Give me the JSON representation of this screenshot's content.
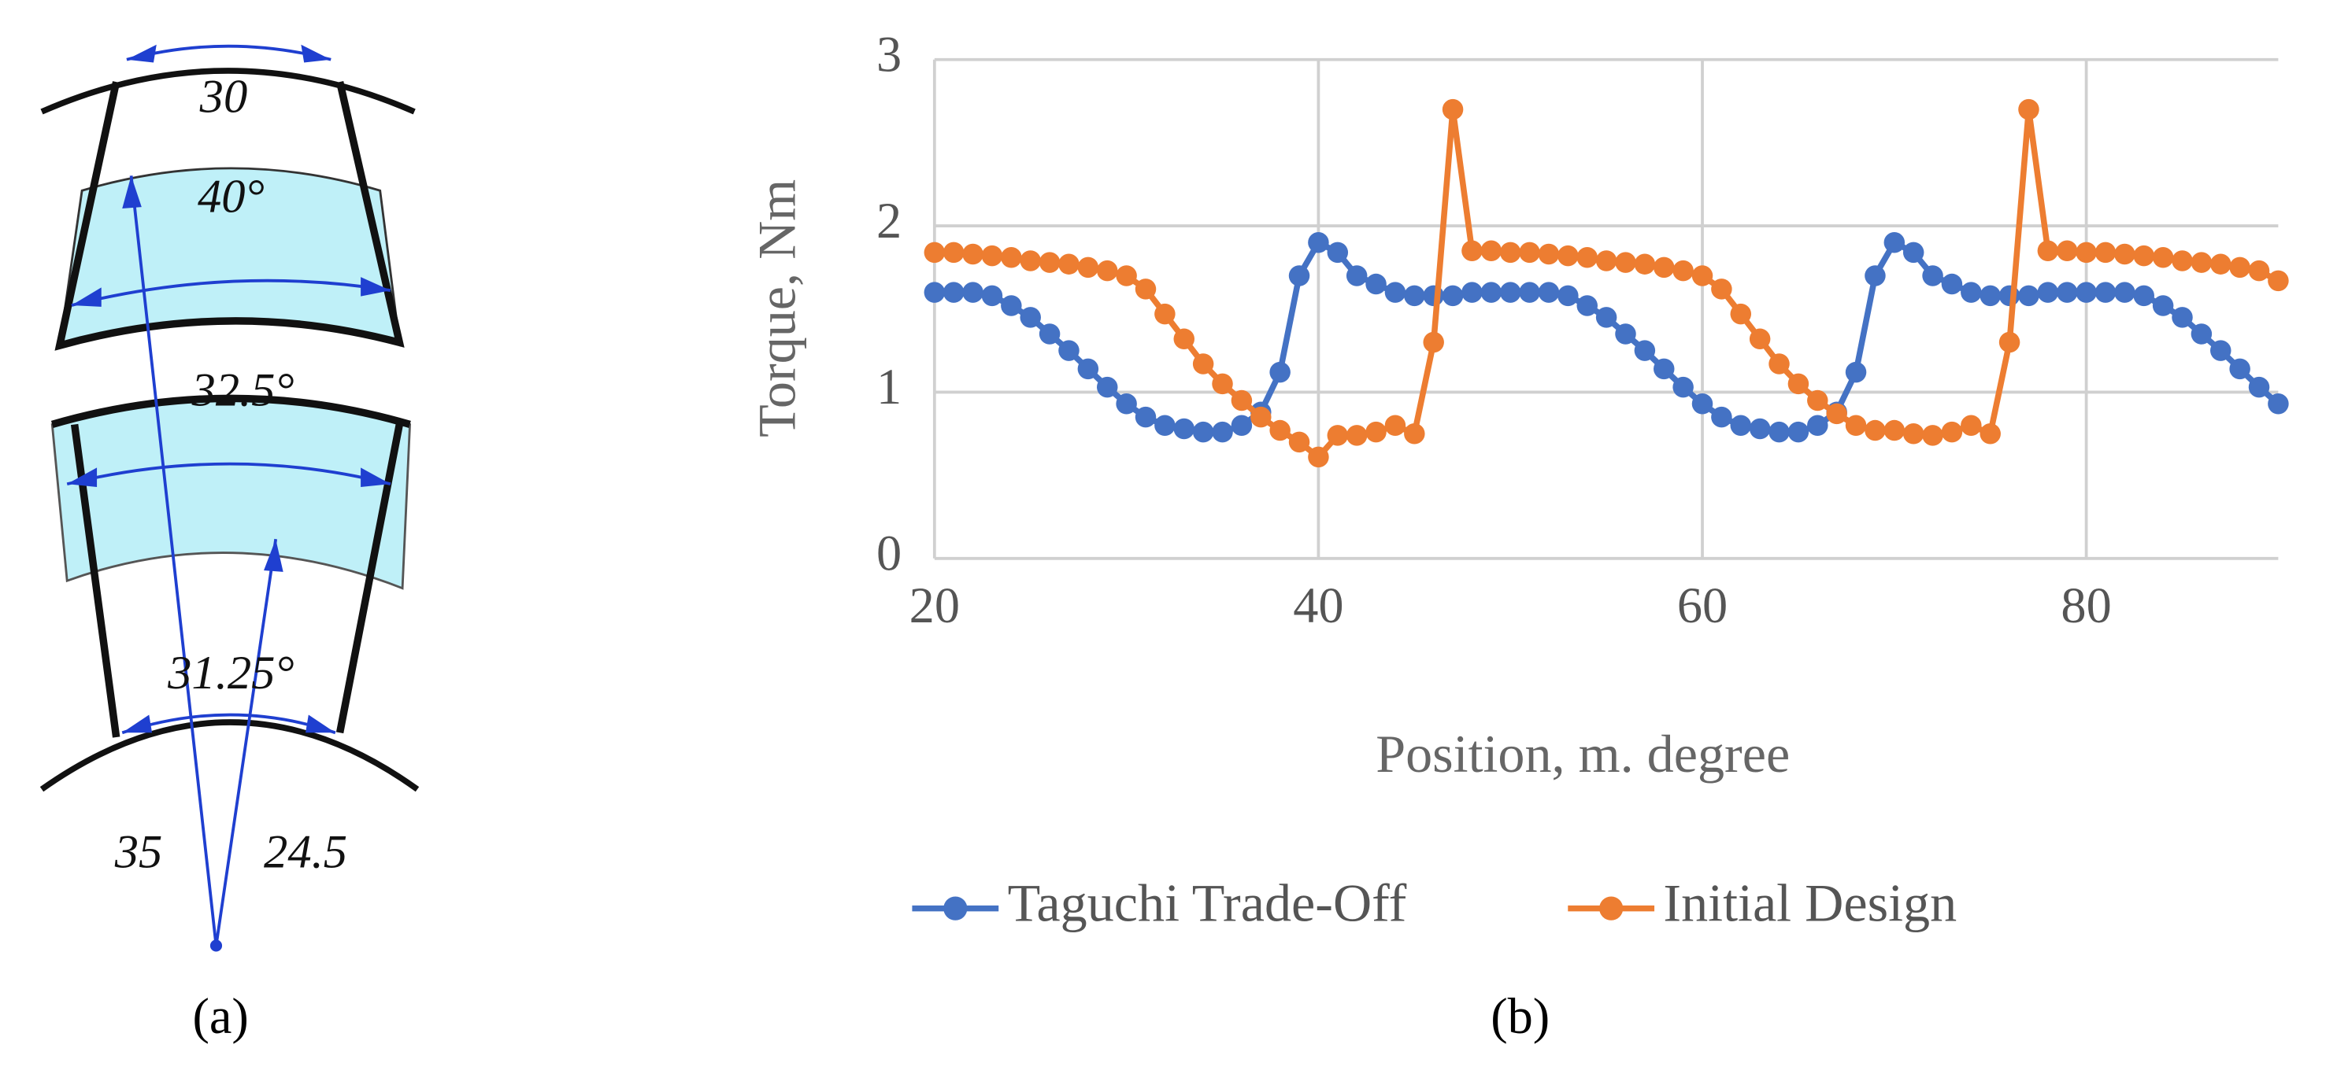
{
  "panel_a": {
    "labels": [
      "30",
      "40°",
      "32.5°",
      "31.25°",
      "35",
      "24.5"
    ],
    "caption": "(a)"
  },
  "caption_b": "(b)",
  "chart_data": {
    "type": "line",
    "xlabel": "Position, m. degree",
    "ylabel": "Torque, Nm",
    "x": [
      20,
      21,
      22,
      23,
      24,
      25,
      26,
      27,
      28,
      29,
      30,
      31,
      32,
      33,
      34,
      35,
      36,
      37,
      38,
      39,
      40,
      41,
      42,
      43,
      44,
      45,
      46,
      47,
      48,
      49,
      50,
      51,
      52,
      53,
      54,
      55,
      56,
      57,
      58,
      59,
      60,
      61,
      62,
      63,
      64,
      65,
      66,
      67,
      68,
      69,
      70,
      71,
      72,
      73,
      74,
      75,
      76,
      77,
      78,
      79,
      80,
      81,
      82,
      83,
      84,
      85,
      86,
      87,
      88,
      89,
      90
    ],
    "series": [
      {
        "name": "Taguchi Trade-Off",
        "color": "#4472c4",
        "values": [
          1.6,
          1.6,
          1.6,
          1.58,
          1.52,
          1.45,
          1.35,
          1.25,
          1.14,
          1.03,
          0.93,
          0.85,
          0.8,
          0.78,
          0.76,
          0.76,
          0.8,
          0.88,
          1.12,
          1.7,
          1.9,
          1.84,
          1.7,
          1.65,
          1.6,
          1.58,
          1.58,
          1.58,
          1.6,
          1.6,
          1.6,
          1.6,
          1.6,
          1.58,
          1.52,
          1.45,
          1.35,
          1.25,
          1.14,
          1.03,
          0.93,
          0.85,
          0.8,
          0.78,
          0.76,
          0.76,
          0.8,
          0.88,
          1.12,
          1.7,
          1.9,
          1.84,
          1.7,
          1.65,
          1.6,
          1.58,
          1.58,
          1.58,
          1.6,
          1.6,
          1.6,
          1.6,
          1.6,
          1.58,
          1.52,
          1.45,
          1.35,
          1.25,
          1.14,
          1.03,
          0.93
        ]
      },
      {
        "name": "Initial Design",
        "color": "#ed7d31",
        "values": [
          1.84,
          1.84,
          1.83,
          1.82,
          1.81,
          1.79,
          1.78,
          1.77,
          1.75,
          1.73,
          1.7,
          1.62,
          1.47,
          1.32,
          1.17,
          1.05,
          0.95,
          0.85,
          0.77,
          0.7,
          0.61,
          0.74,
          0.74,
          0.76,
          0.8,
          0.75,
          1.3,
          2.7,
          1.85,
          1.85,
          1.84,
          1.84,
          1.83,
          1.82,
          1.81,
          1.79,
          1.78,
          1.77,
          1.75,
          1.73,
          1.7,
          1.62,
          1.47,
          1.32,
          1.17,
          1.05,
          0.95,
          0.87,
          0.8,
          0.77,
          0.77,
          0.75,
          0.74,
          0.76,
          0.8,
          0.75,
          1.3,
          2.7,
          1.85,
          1.85,
          1.84,
          1.84,
          1.83,
          1.82,
          1.81,
          1.79,
          1.78,
          1.77,
          1.75,
          1.73,
          1.67
        ]
      }
    ],
    "xlim": [
      20,
      90
    ],
    "xticks": [
      20,
      40,
      60,
      80
    ],
    "ylim": [
      0,
      3
    ],
    "yticks": [
      0,
      1,
      2,
      3
    ],
    "grid": true,
    "legend": "bottom"
  }
}
